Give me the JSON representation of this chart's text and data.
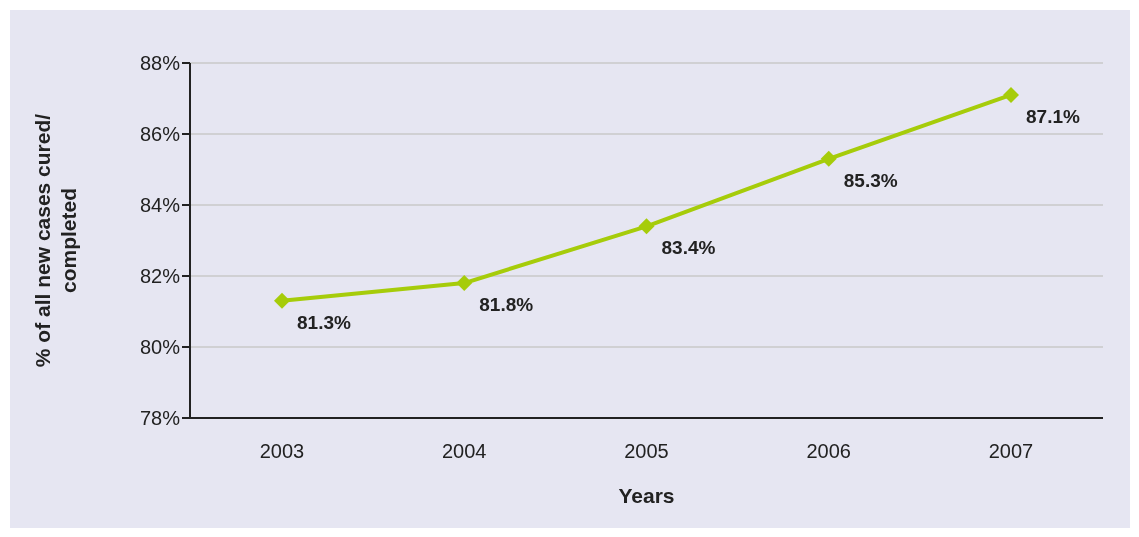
{
  "chart_data": {
    "type": "line",
    "xlabel": "Years",
    "ylabel": "% of all new cases cured/\ncompleted",
    "categories": [
      "2003",
      "2004",
      "2005",
      "2006",
      "2007"
    ],
    "series": [
      {
        "color": "#a6cc0a",
        "values": [
          81.3,
          81.8,
          83.4,
          85.3,
          87.1
        ],
        "value_labels": [
          "81.3%",
          "81.8%",
          "83.4%",
          "85.3%",
          "87.1%"
        ]
      }
    ],
    "ylim": [
      78,
      88
    ],
    "yticks": [
      {
        "value": 78,
        "label": "78%"
      },
      {
        "value": 80,
        "label": "80%"
      },
      {
        "value": 82,
        "label": "82%"
      },
      {
        "value": 84,
        "label": "84%"
      },
      {
        "value": 86,
        "label": "86%"
      },
      {
        "value": 88,
        "label": "88%"
      }
    ],
    "grid": "y",
    "marker": "diamond",
    "line_style": "solid"
  }
}
